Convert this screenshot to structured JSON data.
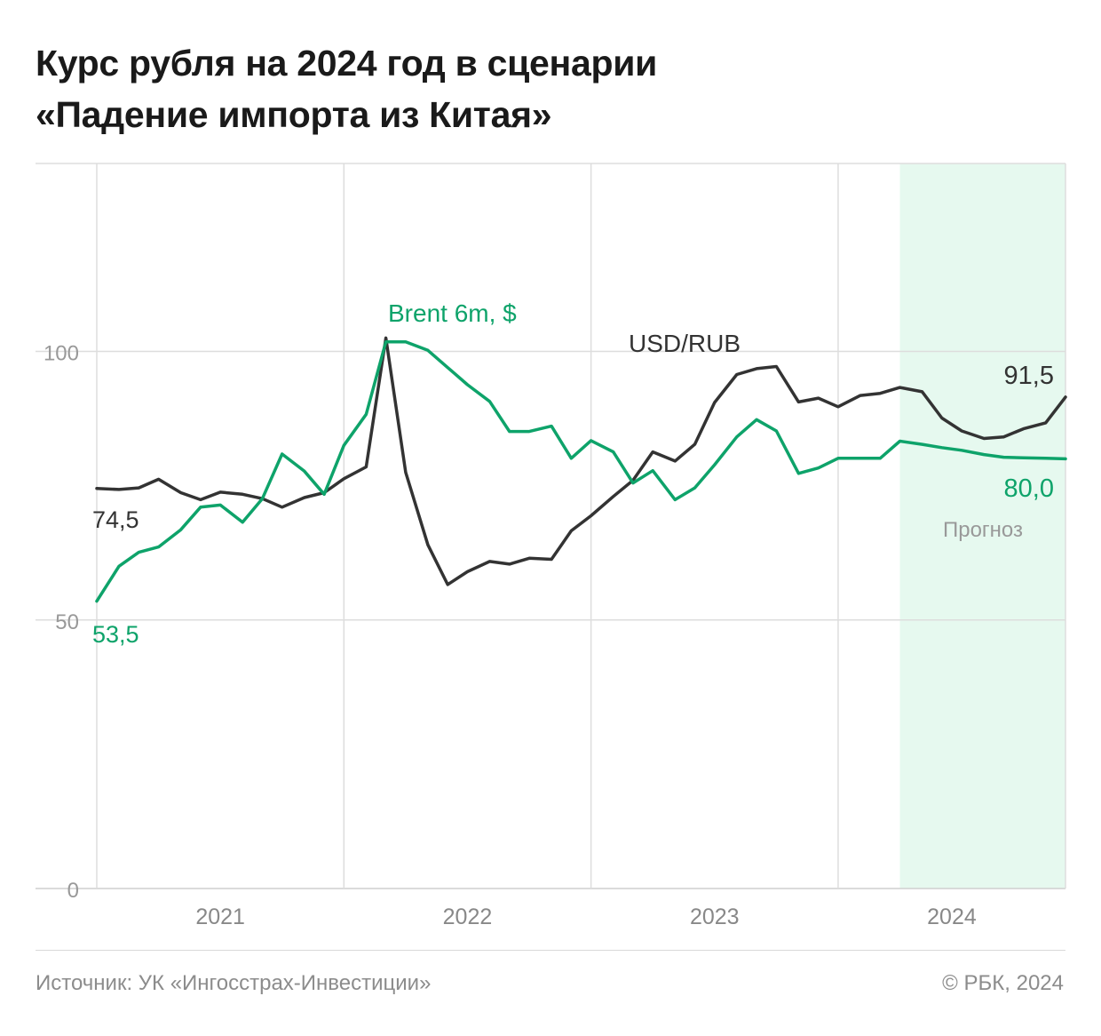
{
  "title_line1": "Курс рубля на 2024 год в сценарии",
  "title_line2": "«Падение импорта из Китая»",
  "source": "Источник: УК «Ингосстрах-Инвестиции»",
  "copyright": "© РБК, 2024",
  "chart_data": {
    "type": "line",
    "ylim": [
      0,
      135
    ],
    "yticks": [
      0,
      50,
      100
    ],
    "grid": true,
    "xlim": [
      2020.5,
      2024.42
    ],
    "xtick_labels": [
      {
        "label": "2021",
        "x": 2021.0
      },
      {
        "label": "2022",
        "x": 2022.0
      },
      {
        "label": "2023",
        "x": 2023.0
      },
      {
        "label": "2024",
        "x": 2023.96
      }
    ],
    "year_dividers": [
      2021.5,
      2022.5,
      2023.5
    ],
    "forecast": {
      "label": "Прогноз",
      "from": 2023.75,
      "to": 2024.42,
      "color": "#e6f9ef"
    },
    "series": [
      {
        "name": "USD/RUB",
        "color": "#333333",
        "start_label": "74,5",
        "end_label": "91,5",
        "points": [
          [
            2020.5,
            74.5
          ],
          [
            2020.59,
            74.3
          ],
          [
            2020.67,
            74.6
          ],
          [
            2020.75,
            76.2
          ],
          [
            2020.84,
            73.7
          ],
          [
            2020.92,
            72.4
          ],
          [
            2021.0,
            73.8
          ],
          [
            2021.09,
            73.4
          ],
          [
            2021.17,
            72.6
          ],
          [
            2021.25,
            71.0
          ],
          [
            2021.34,
            72.8
          ],
          [
            2021.42,
            73.7
          ],
          [
            2021.5,
            76.3
          ],
          [
            2021.59,
            78.5
          ],
          [
            2021.67,
            102.5
          ],
          [
            2021.75,
            77.5
          ],
          [
            2021.84,
            64.0
          ],
          [
            2021.92,
            56.6
          ],
          [
            2022.0,
            59.0
          ],
          [
            2022.09,
            60.9
          ],
          [
            2022.17,
            60.4
          ],
          [
            2022.25,
            61.5
          ],
          [
            2022.34,
            61.3
          ],
          [
            2022.42,
            66.6
          ],
          [
            2022.5,
            69.4
          ],
          [
            2022.59,
            73.0
          ],
          [
            2022.67,
            76.0
          ],
          [
            2022.75,
            81.3
          ],
          [
            2022.84,
            79.6
          ],
          [
            2022.92,
            82.7
          ],
          [
            2023.0,
            90.5
          ],
          [
            2023.09,
            95.7
          ],
          [
            2023.17,
            96.8
          ],
          [
            2023.25,
            97.2
          ],
          [
            2023.34,
            90.6
          ],
          [
            2023.42,
            91.3
          ],
          [
            2023.5,
            89.7
          ],
          [
            2023.59,
            91.8
          ],
          [
            2023.67,
            92.2
          ],
          [
            2023.75,
            93.3
          ],
          [
            2023.84,
            92.5
          ],
          [
            2023.92,
            87.6
          ],
          [
            2024.0,
            85.2
          ],
          [
            2024.09,
            83.8
          ],
          [
            2024.17,
            84.1
          ],
          [
            2024.25,
            85.6
          ],
          [
            2024.34,
            86.7
          ],
          [
            2024.42,
            91.5
          ]
        ]
      },
      {
        "name": "Brent 6m, $",
        "color": "#0ea36a",
        "start_label": "53,5",
        "end_label": "80,0",
        "points": [
          [
            2020.5,
            53.5
          ],
          [
            2020.59,
            60.0
          ],
          [
            2020.67,
            62.6
          ],
          [
            2020.75,
            63.6
          ],
          [
            2020.84,
            66.8
          ],
          [
            2020.92,
            71.0
          ],
          [
            2021.0,
            71.4
          ],
          [
            2021.09,
            68.2
          ],
          [
            2021.17,
            72.6
          ],
          [
            2021.25,
            80.9
          ],
          [
            2021.34,
            77.7
          ],
          [
            2021.42,
            73.4
          ],
          [
            2021.5,
            82.5
          ],
          [
            2021.59,
            88.3
          ],
          [
            2021.67,
            101.8
          ],
          [
            2021.75,
            101.8
          ],
          [
            2021.84,
            100.2
          ],
          [
            2021.92,
            97.0
          ],
          [
            2022.0,
            93.8
          ],
          [
            2022.09,
            90.7
          ],
          [
            2022.17,
            85.1
          ],
          [
            2022.25,
            85.1
          ],
          [
            2022.34,
            86.1
          ],
          [
            2022.42,
            80.1
          ],
          [
            2022.5,
            83.4
          ],
          [
            2022.59,
            81.3
          ],
          [
            2022.67,
            75.5
          ],
          [
            2022.75,
            77.8
          ],
          [
            2022.84,
            72.4
          ],
          [
            2022.92,
            74.6
          ],
          [
            2023.0,
            78.9
          ],
          [
            2023.09,
            84.1
          ],
          [
            2023.17,
            87.3
          ],
          [
            2023.25,
            85.2
          ],
          [
            2023.34,
            77.3
          ],
          [
            2023.42,
            78.3
          ],
          [
            2023.5,
            80.1
          ],
          [
            2023.59,
            80.1
          ],
          [
            2023.67,
            80.1
          ],
          [
            2023.75,
            83.3
          ],
          [
            2023.84,
            82.7
          ],
          [
            2023.92,
            82.1
          ],
          [
            2024.0,
            81.6
          ],
          [
            2024.09,
            80.8
          ],
          [
            2024.17,
            80.3
          ],
          [
            2024.25,
            80.2
          ],
          [
            2024.34,
            80.1
          ],
          [
            2024.42,
            80.0
          ]
        ]
      }
    ],
    "annotations": [
      {
        "text": "Brent 6m, $",
        "series": "Brent 6m, $"
      },
      {
        "text": "USD/RUB",
        "series": "USD/RUB"
      }
    ]
  }
}
